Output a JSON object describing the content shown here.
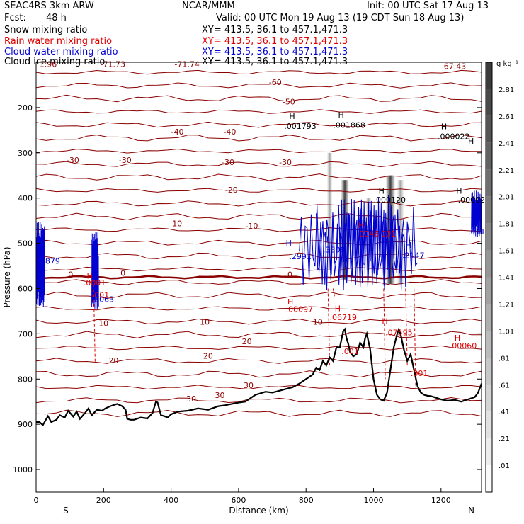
{
  "header": {
    "title": "SEAC4RS  3km ARW",
    "center": "NCAR/MMM",
    "init": "Init: 00 UTC Sat 17 Aug 13",
    "fcst_label": "Fcst:",
    "fcst_value": "48 h",
    "valid": "Valid: 00 UTC Mon 19 Aug 13 (19 CDT Sun 18 Aug 13)"
  },
  "fields": [
    {
      "name": "Snow mixing ratio",
      "xy": "XY= 413.5, 36.1 to 457.1,471.3",
      "color": "#000000"
    },
    {
      "name": "Rain water mixing ratio",
      "xy": "XY= 413.5, 36.1 to 457.1,471.3",
      "color": "#e00000"
    },
    {
      "name": "Cloud water mixing ratio",
      "xy": "XY= 413.5, 36.1 to 457.1,471.3",
      "color": "#0000d0"
    },
    {
      "name": "Cloud ice mixing ratio",
      "xy": "XY= 413.5, 36.1 to 457.1,471.3",
      "color": "#000000"
    }
  ],
  "chart_data": {
    "type": "contour",
    "xlabel": "Distance (km)",
    "ylabel": "Pressure (hPa)",
    "xlim": [
      0,
      1320
    ],
    "ylim": [
      1050,
      100
    ],
    "x_ticks": [
      0,
      200,
      400,
      600,
      800,
      1000,
      1200
    ],
    "y_ticks": [
      200,
      300,
      400,
      500,
      600,
      700,
      800,
      900,
      1000
    ],
    "x_end_labels": {
      "left": "S",
      "right": "N"
    },
    "colorbar": {
      "unit": "g kg⁻¹",
      "labels": [
        "2.81",
        "2.61",
        "2.41",
        "2.21",
        "2.01",
        "1.81",
        "1.61",
        "1.41",
        "1.21",
        "1.01",
        ".81",
        ".61",
        ".41",
        ".21",
        ".01"
      ]
    },
    "temperature_contours": {
      "color": "#8b0000",
      "levels_c": [
        -71.73,
        -71.74,
        -67.43,
        -60,
        -50,
        -40,
        -30,
        -20,
        -10,
        0,
        10,
        20,
        30
      ],
      "labels": [
        {
          "text": "1.96",
          "x": 10,
          "p": 110
        },
        {
          "text": "-71.73",
          "x": 190,
          "p": 110
        },
        {
          "text": "-71.74",
          "x": 410,
          "p": 110
        },
        {
          "text": "-67.43",
          "x": 1200,
          "p": 115
        },
        {
          "text": "-60",
          "x": 690,
          "p": 150
        },
        {
          "text": "-50",
          "x": 730,
          "p": 193
        },
        {
          "text": "-40",
          "x": 400,
          "p": 260
        },
        {
          "text": "-40",
          "x": 555,
          "p": 260
        },
        {
          "text": "-30",
          "x": 90,
          "p": 322
        },
        {
          "text": "-30",
          "x": 245,
          "p": 322
        },
        {
          "text": "-30",
          "x": 550,
          "p": 327
        },
        {
          "text": "-30",
          "x": 720,
          "p": 327
        },
        {
          "text": "-20",
          "x": 560,
          "p": 388
        },
        {
          "text": "-10",
          "x": 395,
          "p": 462
        },
        {
          "text": "-10",
          "x": 620,
          "p": 468
        },
        {
          "text": "0",
          "x": 95,
          "p": 575
        },
        {
          "text": "0",
          "x": 250,
          "p": 572
        },
        {
          "text": "0",
          "x": 745,
          "p": 575
        },
        {
          "text": "10",
          "x": 185,
          "p": 683
        },
        {
          "text": "10",
          "x": 485,
          "p": 680
        },
        {
          "text": "10",
          "x": 820,
          "p": 680
        },
        {
          "text": "20",
          "x": 215,
          "p": 765
        },
        {
          "text": "20",
          "x": 495,
          "p": 755
        },
        {
          "text": "20",
          "x": 610,
          "p": 723
        },
        {
          "text": "30",
          "x": 445,
          "p": 850
        },
        {
          "text": "30",
          "x": 530,
          "p": 842
        },
        {
          "text": "30",
          "x": 615,
          "p": 820
        }
      ]
    },
    "freezing_level_p": 575,
    "terrain": {
      "color": "#000000",
      "x": [
        0,
        10,
        20,
        35,
        45,
        60,
        70,
        85,
        95,
        110,
        120,
        130,
        145,
        155,
        165,
        180,
        195,
        205,
        220,
        240,
        255,
        265,
        270,
        280,
        290,
        310,
        330,
        345,
        355,
        360,
        370,
        380,
        390,
        400,
        420,
        450,
        480,
        510,
        540,
        560,
        580,
        600,
        620,
        650,
        680,
        700,
        720,
        740,
        760,
        780,
        800,
        820,
        830,
        840,
        850,
        860,
        870,
        880,
        890,
        900,
        910,
        915,
        920,
        925,
        930,
        940,
        950,
        960,
        970,
        975,
        980,
        990,
        1000,
        1010,
        1020,
        1030,
        1040,
        1050,
        1060,
        1070,
        1075,
        1080,
        1090,
        1100,
        1110,
        1120,
        1130,
        1140,
        1150,
        1160,
        1170,
        1180,
        1200,
        1220,
        1240,
        1260,
        1280,
        1300,
        1310,
        1320
      ],
      "p": [
        895,
        895,
        902,
        882,
        895,
        890,
        880,
        885,
        870,
        883,
        872,
        888,
        875,
        865,
        880,
        868,
        870,
        865,
        860,
        855,
        860,
        868,
        888,
        890,
        890,
        885,
        887,
        875,
        850,
        852,
        880,
        882,
        885,
        878,
        872,
        870,
        865,
        868,
        860,
        858,
        855,
        852,
        850,
        835,
        828,
        830,
        826,
        822,
        818,
        810,
        800,
        790,
        775,
        780,
        760,
        770,
        752,
        760,
        730,
        730,
        695,
        690,
        710,
        722,
        740,
        750,
        745,
        720,
        730,
        710,
        700,
        735,
        800,
        835,
        845,
        848,
        830,
        780,
        730,
        700,
        690,
        700,
        735,
        760,
        745,
        780,
        815,
        830,
        835,
        837,
        838,
        840,
        845,
        848,
        846,
        850,
        845,
        840,
        830,
        810
      ]
    },
    "cloud_water": {
      "color": "#0000d0",
      "labels": [
        {
          "text": ".1879",
          "x": 5,
          "p": 545
        },
        {
          "text": ".3063",
          "x": 165,
          "p": 630
        },
        {
          "text": ".2991",
          "x": 750,
          "p": 535
        },
        {
          "text": ".3809",
          "x": 850,
          "p": 520
        },
        {
          "text": ".2147",
          "x": 1085,
          "p": 533
        },
        {
          "text": ".011",
          "x": 1280,
          "p": 480
        }
      ]
    },
    "rain_water": {
      "color": "#e00000",
      "labels": [
        {
          "text": ".0001",
          "x": 140,
          "p": 593
        },
        {
          "text": ".001",
          "x": 165,
          "p": 620
        },
        {
          "text": ".00097",
          "x": 740,
          "p": 652
        },
        {
          "text": ".06719",
          "x": 870,
          "p": 670
        },
        {
          "text": ".07595",
          "x": 1035,
          "p": 703
        },
        {
          "text": ".001",
          "x": 905,
          "p": 745
        },
        {
          "text": ".001",
          "x": 1110,
          "p": 793
        },
        {
          "text": ".00060",
          "x": 1225,
          "p": 732
        },
        {
          "text": ".001",
          "x": 1015,
          "p": 485
        },
        {
          "text": ".0046",
          "x": 950,
          "p": 485
        }
      ]
    },
    "snow": {
      "color": "#000000",
      "labels": [
        {
          "text": ".001793",
          "x": 735,
          "p": 247
        },
        {
          "text": ".001868",
          "x": 880,
          "p": 245
        },
        {
          "text": ".000022",
          "x": 1190,
          "p": 270
        },
        {
          "text": ".000120",
          "x": 1000,
          "p": 410
        },
        {
          "text": ".00002",
          "x": 1250,
          "p": 410
        }
      ]
    },
    "h_markers": [
      {
        "x": 750,
        "p": 225,
        "color": "#000000"
      },
      {
        "x": 895,
        "p": 222,
        "color": "#000000"
      },
      {
        "x": 1200,
        "p": 248,
        "color": "#000000"
      },
      {
        "x": 1015,
        "p": 390,
        "color": "#000000"
      },
      {
        "x": 1245,
        "p": 390,
        "color": "#000000"
      },
      {
        "x": 740,
        "p": 505,
        "color": "#0000d0"
      },
      {
        "x": 860,
        "p": 497,
        "color": "#0000d0"
      },
      {
        "x": 1095,
        "p": 510,
        "color": "#0000d0"
      },
      {
        "x": 150,
        "p": 578,
        "color": "#e00000"
      },
      {
        "x": 170,
        "p": 606,
        "color": "#0000d0"
      },
      {
        "x": 745,
        "p": 635,
        "color": "#e00000"
      },
      {
        "x": 885,
        "p": 650,
        "color": "#e00000"
      },
      {
        "x": 1025,
        "p": 678,
        "color": "#e00000"
      },
      {
        "x": 1240,
        "p": 715,
        "color": "#e00000"
      },
      {
        "x": 1280,
        "p": 280,
        "color": "#000000"
      },
      {
        "x": 955,
        "p": 466,
        "color": "#e00000"
      }
    ]
  }
}
